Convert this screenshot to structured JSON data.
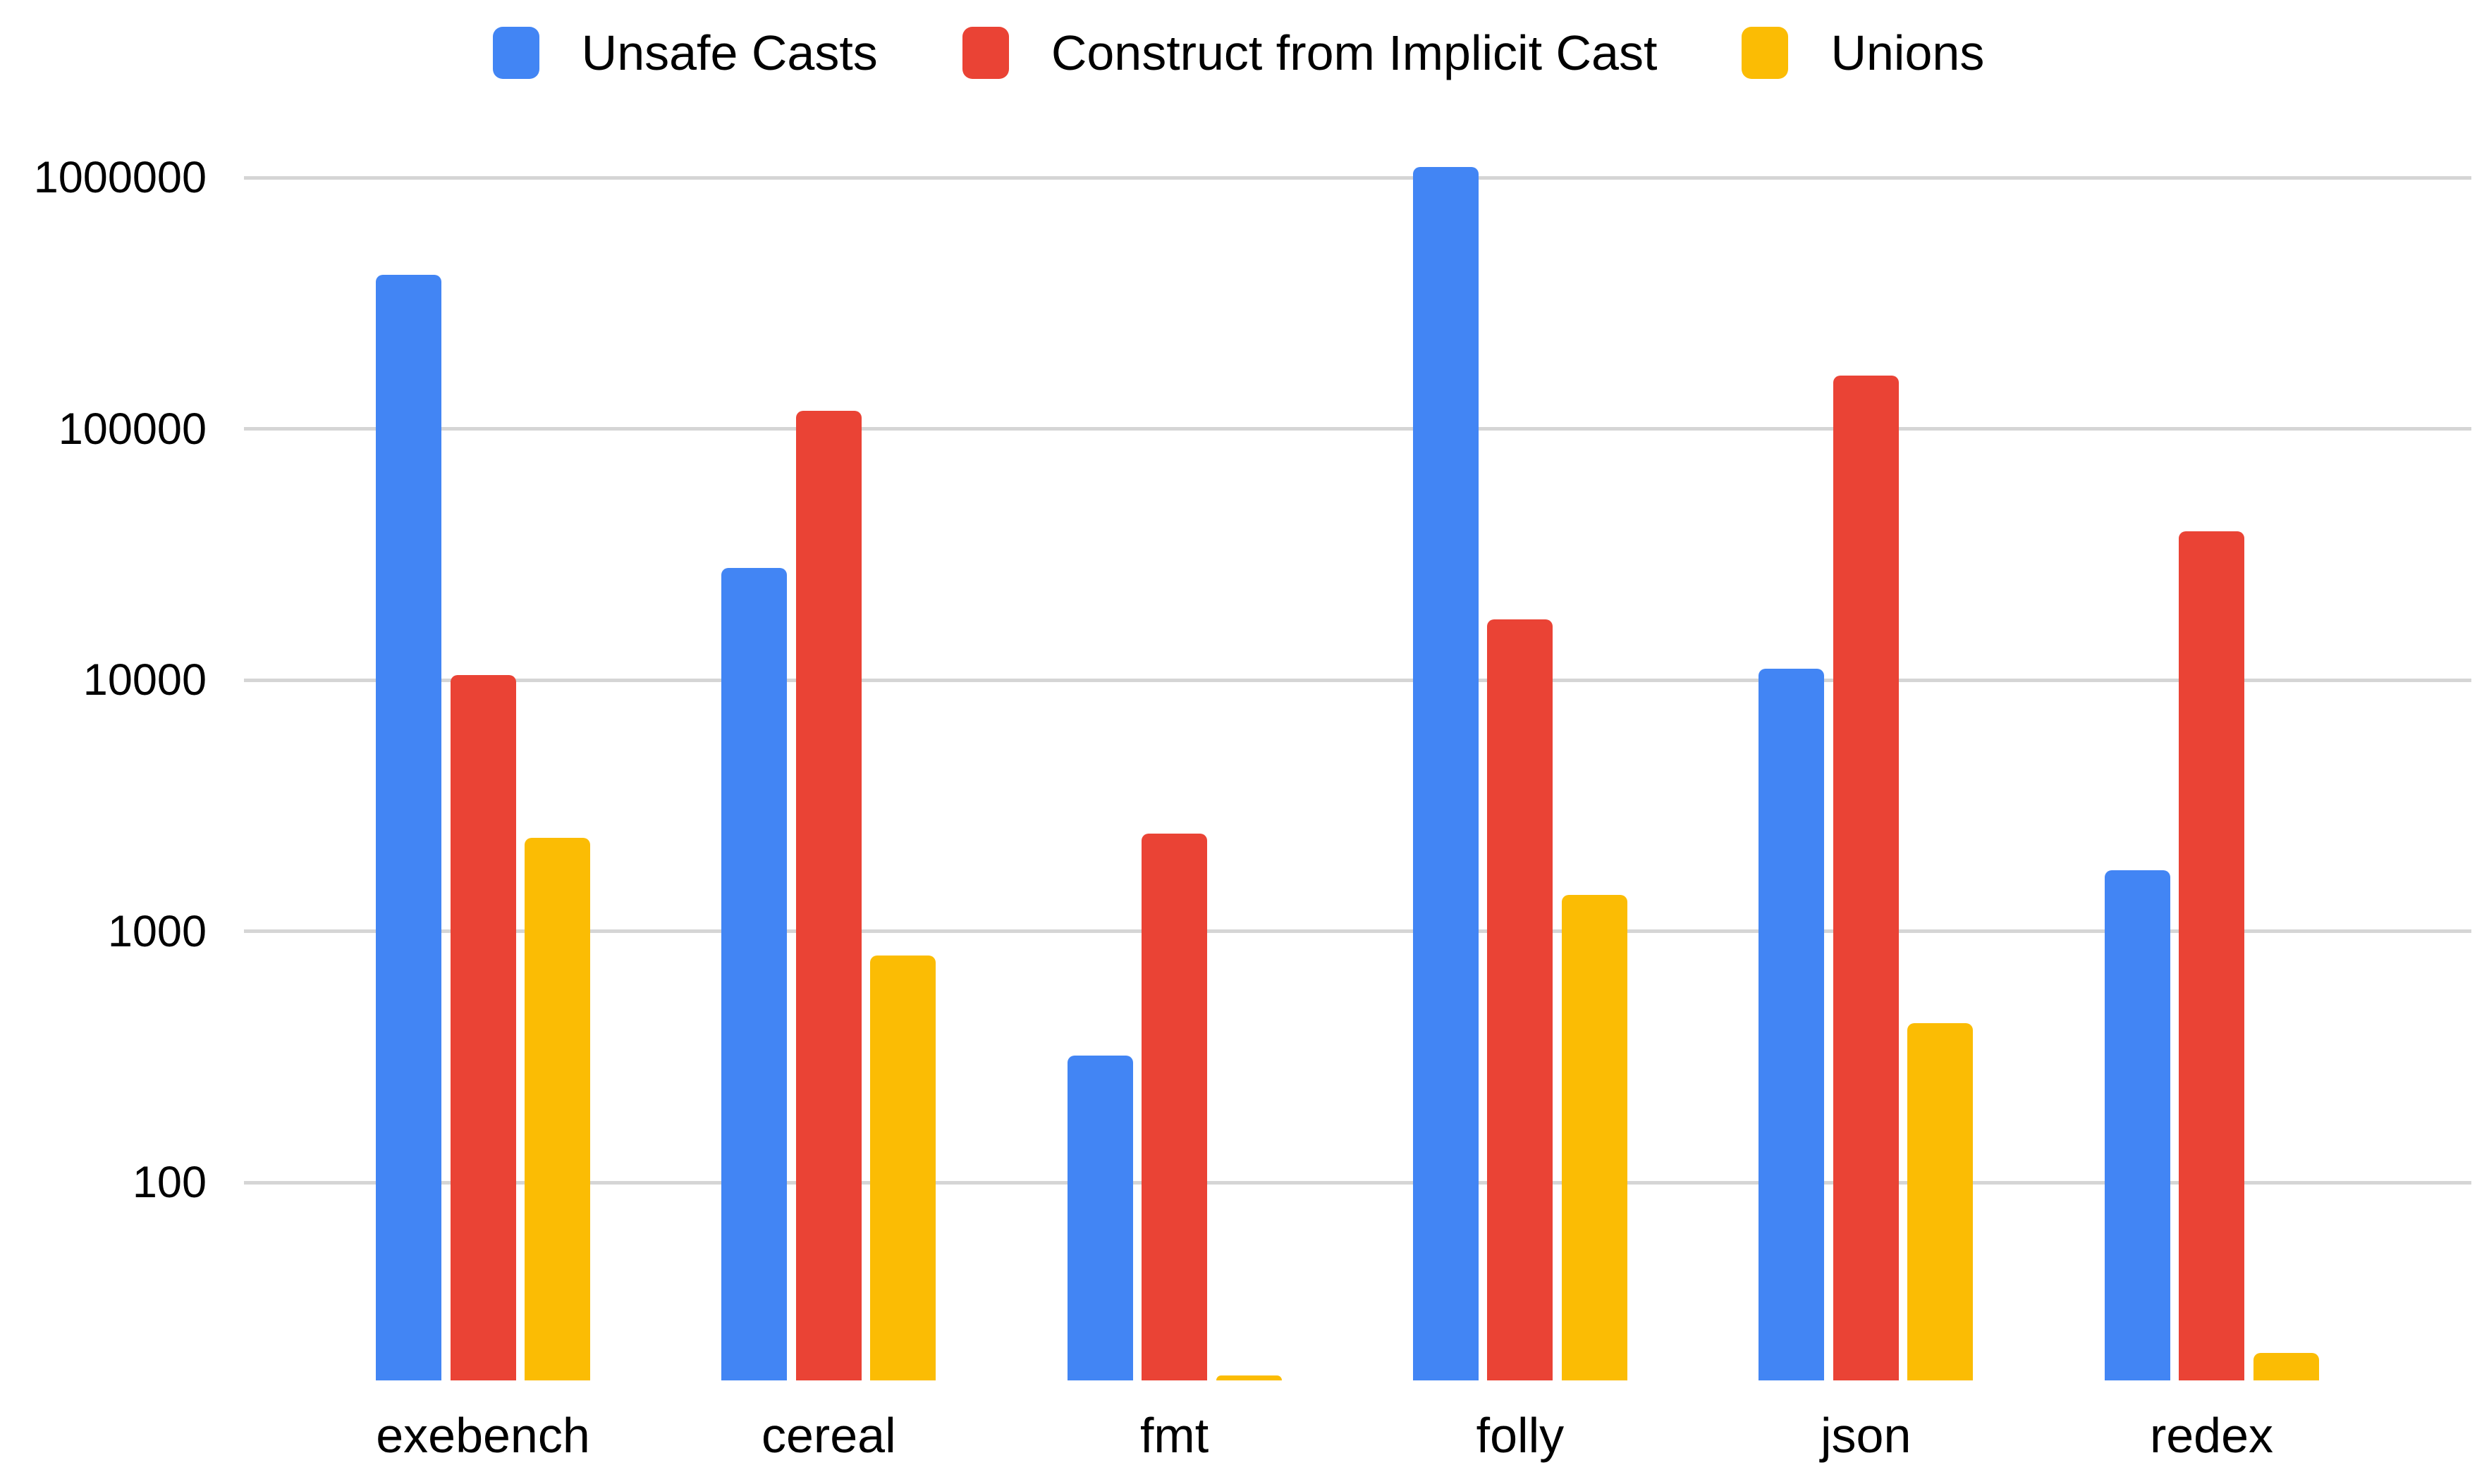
{
  "chart_data": {
    "type": "bar",
    "title": "",
    "categories": [
      "exebench",
      "cereal",
      "fmt",
      "folly",
      "json",
      "redex"
    ],
    "series": [
      {
        "name": "Unsafe Casts",
        "color": "#4285F4",
        "values": [
          410000,
          28000,
          320,
          1100000,
          11100,
          1750
        ]
      },
      {
        "name": "Construct from Implicit Cast",
        "color": "#EA4335",
        "values": [
          10500,
          118000,
          2450,
          17500,
          163000,
          39000
        ]
      },
      {
        "name": "Unions",
        "color": "#FBBC04",
        "values": [
          2350,
          800,
          17,
          1400,
          430,
          21
        ]
      }
    ],
    "y_axis": {
      "scale": "log",
      "tick_labels": [
        "1000000",
        "100000",
        "10000",
        "1000",
        "100"
      ],
      "tick_values": [
        1000000,
        100000,
        10000,
        1000,
        100
      ],
      "min": 16.3
    },
    "x_axis": {
      "label": ""
    },
    "grid": true,
    "legend_position": "top",
    "background_color": "#FFFFFF",
    "gridline_color": "#D5D5D5",
    "text_color": "#000000"
  }
}
